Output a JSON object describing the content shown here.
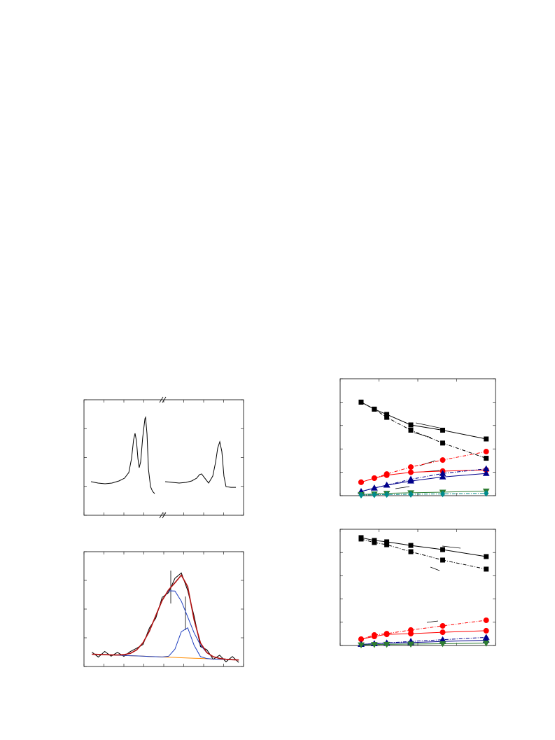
{
  "chart_data": [
    {
      "type": "line",
      "xlim": [
        0,
        100
      ],
      "ylim": [
        0,
        100
      ],
      "xticks": [
        0,
        12.5,
        25,
        37.5,
        50,
        62.5,
        75,
        87.5,
        100
      ],
      "yticks": [
        0,
        25,
        50,
        75,
        100
      ],
      "series": [
        {
          "color": "#000000",
          "width": 1,
          "x": [
            4.4,
            8.8,
            13.2,
            17.5,
            21.9,
            25.4,
            28.1,
            29.8,
            31.1,
            32.0,
            32.9,
            33.8,
            34.6,
            35.5,
            36.8,
            38.2,
            38.6,
            39.5,
            40.4,
            41.7,
            43.0,
            44.3
          ],
          "values": [
            29.1,
            27.9,
            27.3,
            27.9,
            29.7,
            32.1,
            37.0,
            49.1,
            65.5,
            70.9,
            64.2,
            49.1,
            41.2,
            46.1,
            67.3,
            83.6,
            84.8,
            70.3,
            40.0,
            24.8,
            20.6,
            18.8
          ]
        },
        {
          "color": "#000000",
          "width": 1,
          "x": [
            50.9,
            55.3,
            59.6,
            64.0,
            67.5,
            70.6,
            72.4,
            73.7,
            75.4,
            78.1,
            80.7,
            82.5,
            83.8,
            85.1,
            86.4,
            87.7,
            89.0,
            92.1,
            95.2
          ],
          "values": [
            29.1,
            28.5,
            27.9,
            28.5,
            29.7,
            32.1,
            35.2,
            35.8,
            32.7,
            27.9,
            33.9,
            46.1,
            58.2,
            63.6,
            55.2,
            33.9,
            24.8,
            24.2,
            24.2
          ]
        }
      ]
    },
    {
      "type": "line",
      "xlim": [
        0,
        100
      ],
      "ylim": [
        0,
        100
      ],
      "xticks": [
        0,
        12.5,
        25,
        37.5,
        50,
        62.5,
        75,
        87.5,
        100
      ],
      "yticks": [
        0,
        25,
        50,
        75,
        100
      ],
      "x": [
        5,
        9,
        13,
        17,
        21,
        25,
        29,
        33,
        37,
        41,
        45,
        49,
        53,
        57,
        61,
        65,
        69,
        73,
        77,
        81,
        85,
        89,
        93,
        97
      ],
      "series": [
        {
          "color": "#000000",
          "width": 1,
          "values": [
            12.5,
            8.2,
            13.1,
            9.0,
            12.3,
            8.8,
            13.0,
            15.9,
            19.2,
            33.5,
            42.1,
            60.2,
            64.3,
            76.8,
            81.5,
            66.2,
            44.0,
            17.3,
            14.6,
            6.2,
            9.8,
            4.1,
            8.7,
            3.5
          ]
        },
        {
          "color": "#ff8c00",
          "width": 1,
          "values": [
            10.7,
            10.5,
            10.3,
            10.1,
            9.8,
            9.6,
            9.4,
            9.2,
            9.0,
            8.7,
            8.5,
            8.3,
            8.1,
            7.9,
            7.6,
            7.4,
            7.2,
            7.0,
            6.8,
            6.5,
            6.3,
            6.1,
            5.9,
            5.7
          ]
        },
        {
          "color": "#1f3fbf",
          "width": 1,
          "values": [
            10.7,
            10.5,
            10.3,
            10.1,
            10.0,
            10.3,
            11.4,
            14.4,
            20.7,
            30.8,
            44.3,
            57.6,
            65.9,
            65.7,
            56.9,
            43.2,
            29.3,
            18.7,
            12.0,
            8.5,
            6.95,
            6.3,
            5.9,
            5.7
          ]
        },
        {
          "color": "#1f3fbf",
          "width": 1,
          "values": [
            10.7,
            10.5,
            10.3,
            10.1,
            9.8,
            9.6,
            9.4,
            9.2,
            9.0,
            8.7,
            8.5,
            8.3,
            8.9,
            15.1,
            30.3,
            33.7,
            18.5,
            8.6,
            6.9,
            6.5,
            6.3,
            6.1,
            5.9,
            5.7
          ]
        },
        {
          "color": "#b01010",
          "width": 1.6,
          "values": [
            10.7,
            10.5,
            10.3,
            10.1,
            10.0,
            10.3,
            11.4,
            14.4,
            20.7,
            30.8,
            44.3,
            57.6,
            66.7,
            72.9,
            79.6,
            69.5,
            40.6,
            20.5,
            12.1,
            8.5,
            7.0,
            6.3,
            5.9,
            5.7
          ]
        }
      ]
    },
    {
      "type": "line",
      "xlim": [
        0,
        100
      ],
      "ylim": [
        0,
        100
      ],
      "xticks": [
        0,
        25,
        50,
        75,
        100
      ],
      "yticks": [
        0,
        20,
        40,
        60,
        80,
        100
      ],
      "x": [
        13.5,
        22,
        30,
        45.5,
        66,
        94
      ],
      "series": [
        {
          "color": "#000000",
          "marker": "square",
          "width": 1,
          "values": [
            80,
            74,
            69.5,
            60.5,
            56,
            48.5
          ]
        },
        {
          "color": "#000000",
          "marker": "square",
          "width": 1,
          "dash": true,
          "values": [
            80,
            74,
            67,
            56,
            45,
            32
          ]
        },
        {
          "color": "#ff0000",
          "marker": "circle",
          "width": 1,
          "values": [
            11.5,
            15,
            17.5,
            20,
            21,
            22
          ]
        },
        {
          "color": "#ff0000",
          "marker": "circle",
          "width": 1,
          "dash": true,
          "values": [
            11.5,
            15,
            18.5,
            24.5,
            30.5,
            37.7
          ]
        },
        {
          "color": "#00008b",
          "marker": "triangle",
          "width": 1,
          "values": [
            3.5,
            6.5,
            9,
            12.5,
            16,
            19
          ]
        },
        {
          "color": "#00008b",
          "marker": "triangle",
          "width": 1,
          "dash": true,
          "values": [
            3.5,
            6.5,
            9,
            14,
            19,
            23
          ]
        },
        {
          "color": "#2e7d32",
          "marker": "triangle-down",
          "width": 1,
          "values": [
            1,
            1.5,
            2,
            2.5,
            3,
            4
          ]
        },
        {
          "color": "#008b8b",
          "marker": "diamond",
          "width": 1,
          "dash": true,
          "values": [
            0.5,
            0.8,
            1,
            1.2,
            1.5,
            2
          ]
        }
      ]
    },
    {
      "type": "line",
      "xlim": [
        0,
        100
      ],
      "ylim": [
        0,
        100
      ],
      "xticks": [
        0,
        25,
        50,
        75,
        100
      ],
      "yticks": [
        0,
        20,
        40,
        60,
        80,
        100
      ],
      "x": [
        13.5,
        22,
        30,
        45.5,
        66,
        94
      ],
      "series": [
        {
          "color": "#000000",
          "marker": "square",
          "width": 1,
          "values": [
            92.8,
            90.4,
            89.2,
            86.1,
            82.5,
            76.5
          ]
        },
        {
          "color": "#000000",
          "marker": "square",
          "width": 1,
          "dash": true,
          "values": [
            91.6,
            88.6,
            86.7,
            80.7,
            73.5,
            65.7
          ]
        },
        {
          "color": "#ff0000",
          "marker": "circle",
          "width": 1,
          "values": [
            5.4,
            7.8,
            9.6,
            10.2,
            11.4,
            12.7
          ]
        },
        {
          "color": "#ff0000",
          "marker": "circle",
          "width": 1,
          "dash": true,
          "values": [
            5.4,
            9,
            10.2,
            13.3,
            16.9,
            21.7
          ]
        },
        {
          "color": "#00008b",
          "marker": "triangle",
          "width": 1,
          "values": [
            1,
            1.5,
            2,
            2.5,
            3.5,
            4.5
          ]
        },
        {
          "color": "#00008b",
          "marker": "triangle",
          "width": 1,
          "dash": true,
          "values": [
            1,
            1.5,
            2.2,
            3.5,
            5,
            7
          ]
        },
        {
          "color": "#2e7d32",
          "marker": "triangle-down",
          "width": 1,
          "values": [
            0.5,
            0.8,
            1,
            1.2,
            1.5,
            2
          ]
        }
      ]
    }
  ]
}
